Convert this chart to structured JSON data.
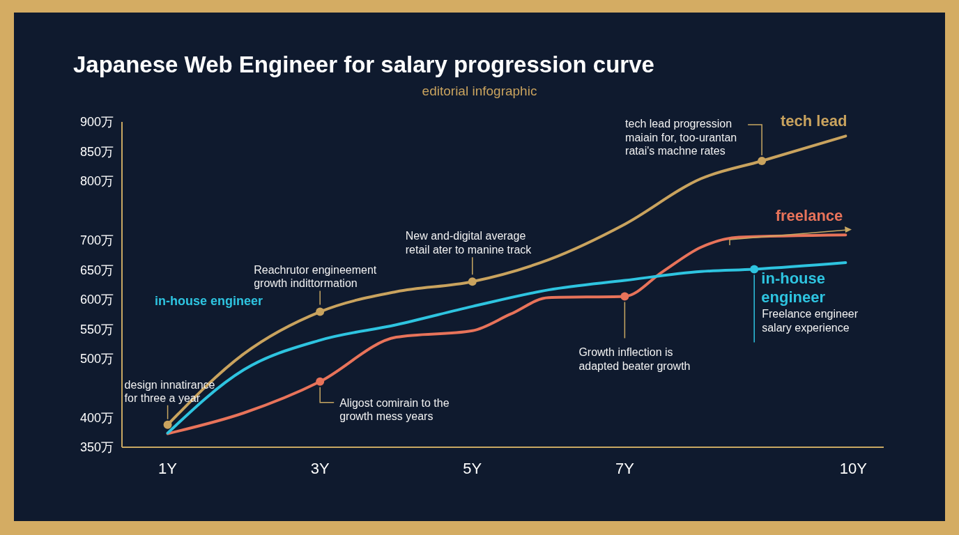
{
  "chart_data": {
    "type": "line",
    "title": "Japanese Web Engineer for salary progression curve",
    "subtitle": "editorial infographic",
    "series": [
      {
        "name": "tech lead",
        "color": "#c9a35e",
        "x": [
          1,
          2,
          3,
          4,
          5,
          6,
          7,
          8,
          8.8,
          9.9
        ],
        "values": [
          388,
          508,
          579,
          613,
          630,
          667,
          727,
          804,
          834,
          876
        ]
      },
      {
        "name": "freelance",
        "color": "#e8735a",
        "x": [
          1,
          2,
          3,
          4,
          5,
          5.5,
          6,
          7,
          7.5,
          8,
          8.5,
          9.9
        ],
        "values": [
          373,
          408,
          461,
          536,
          547,
          575,
          603,
          605,
          647,
          688,
          705,
          709
        ]
      },
      {
        "name": "in-house engineer",
        "color": "#2ec4e0",
        "x": [
          1,
          2,
          3,
          4,
          5,
          6,
          7,
          8,
          8.7,
          9.9
        ],
        "values": [
          374,
          481,
          531,
          557,
          588,
          616,
          632,
          647,
          651,
          662
        ]
      }
    ],
    "xlim": [
      0.4,
      10.4
    ],
    "xticks": [
      {
        "value": 1,
        "label": "1Y"
      },
      {
        "value": 3,
        "label": "3Y"
      },
      {
        "value": 5,
        "label": "5Y"
      },
      {
        "value": 7,
        "label": "7Y"
      },
      {
        "value": 10,
        "label": "10Y"
      }
    ],
    "ylim": [
      350,
      900
    ],
    "yticks": [
      {
        "value": 350,
        "label": "350万"
      },
      {
        "value": 400,
        "label": "400万"
      },
      {
        "value": 500,
        "label": "500万"
      },
      {
        "value": 550,
        "label": "550万"
      },
      {
        "value": 600,
        "label": "600万"
      },
      {
        "value": 650,
        "label": "650万"
      },
      {
        "value": 700,
        "label": "700万"
      },
      {
        "value": 800,
        "label": "800万"
      },
      {
        "value": 850,
        "label": "850万"
      },
      {
        "value": 900,
        "label": "900万"
      }
    ],
    "grid": false,
    "annotations": [
      "in-house engineer",
      {
        "text": "design innatirance\nfor three a year",
        "x": 1,
        "y": 388
      },
      {
        "text": "Reachrutor engineement\ngrowth indittormation",
        "x": 3,
        "y": 579
      },
      {
        "text": "New and-digital average\nretail ater to manine track",
        "x": 5,
        "y": 630
      },
      {
        "text": "tech lead progression\nmaiain for, too-urantan\nratai's machne rates",
        "x": 8.8,
        "y": 834
      },
      {
        "text": "Aligost comirain to the\ngrowth mess years",
        "x": 3,
        "y": 461
      },
      {
        "text": "Growth inflection is\nadapted beater growth",
        "x": 7,
        "y": 605
      },
      {
        "text": "Freelance engineer\nsalary experience",
        "x": 8.7,
        "y": 651
      }
    ]
  }
}
